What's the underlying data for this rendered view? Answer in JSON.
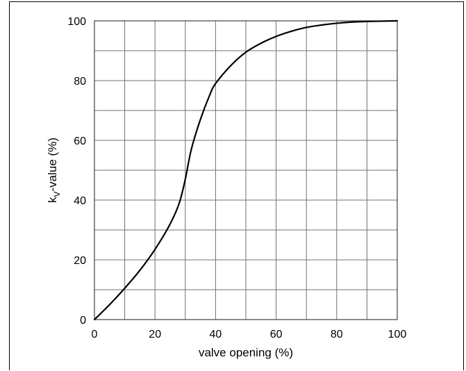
{
  "chart_data": {
    "type": "line",
    "xlabel": "valve opening (%)",
    "ylabel": {
      "main": "k",
      "subscript": "V",
      "rest": "-value (%)"
    },
    "xlim": [
      0,
      100
    ],
    "ylim": [
      0,
      100
    ],
    "x_ticks": [
      0,
      20,
      40,
      60,
      80,
      100
    ],
    "y_ticks": [
      0,
      20,
      40,
      60,
      80,
      100
    ],
    "x_minor_grid_step": 10,
    "y_minor_grid_step": 10,
    "grid": true,
    "series": [
      {
        "x": [
          0,
          5,
          10,
          15,
          20,
          25,
          28,
          30,
          32,
          35,
          38,
          40,
          45,
          50,
          55,
          60,
          65,
          70,
          75,
          80,
          85,
          90,
          95,
          100
        ],
        "values": [
          0,
          5,
          10.5,
          16.5,
          23.5,
          32,
          39,
          47,
          57,
          67,
          75,
          79,
          85,
          89.5,
          92.5,
          94.8,
          96.5,
          97.8,
          98.6,
          99.2,
          99.6,
          99.8,
          99.9,
          100
        ]
      }
    ],
    "colors": {
      "curve": "#000000",
      "grid": "#707070"
    }
  }
}
